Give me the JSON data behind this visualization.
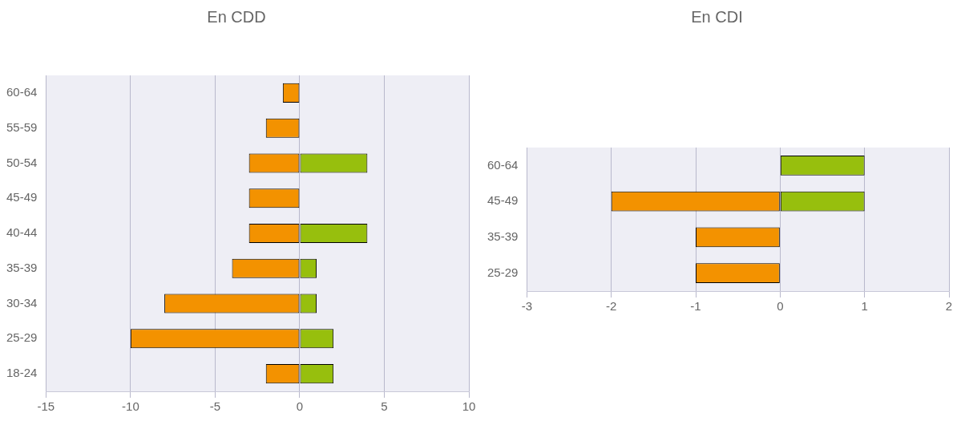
{
  "chart_data": [
    {
      "type": "bar",
      "title": "En CDD",
      "orientation": "horizontal",
      "stacked": true,
      "grid": "x",
      "legend": false,
      "categories": [
        "60-64",
        "55-59",
        "50-54",
        "45-49",
        "40-44",
        "35-39",
        "30-34",
        "25-29",
        "18-24"
      ],
      "xlim": [
        -15,
        10
      ],
      "xticks": [
        -15,
        -10,
        -5,
        0,
        5,
        10
      ],
      "series": [
        {
          "color": "#f39200",
          "values": [
            -1,
            -2,
            -3,
            -3,
            -3,
            -4,
            -8,
            -10,
            -2
          ]
        },
        {
          "color": "#97bf0d",
          "values": [
            null,
            null,
            4,
            null,
            4,
            1,
            1,
            2,
            2
          ]
        }
      ]
    },
    {
      "type": "bar",
      "title": "En CDI",
      "orientation": "horizontal",
      "stacked": true,
      "grid": "x",
      "legend": false,
      "categories": [
        "60-64",
        "45-49",
        "35-39",
        "25-29"
      ],
      "xlim": [
        -3,
        2
      ],
      "xticks": [
        -3,
        -2,
        -1,
        0,
        1,
        2
      ],
      "series": [
        {
          "color": "#f39200",
          "values": [
            null,
            -2,
            -1,
            -1
          ]
        },
        {
          "color": "#97bf0d",
          "values": [
            1,
            1,
            null,
            null
          ]
        }
      ]
    }
  ]
}
